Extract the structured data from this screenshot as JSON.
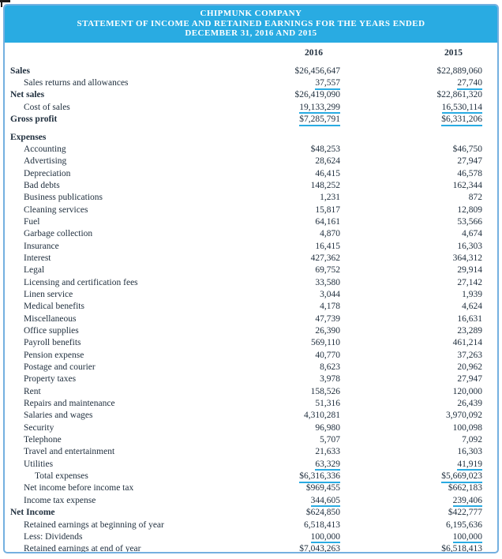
{
  "header": {
    "company": "CHIPMUNK COMPANY",
    "statement_title": "STATEMENT OF INCOME AND RETAINED EARNINGS FOR THE YEARS ENDED",
    "period": "DECEMBER 31, 2016 AND 2015"
  },
  "columns": [
    "2016",
    "2015"
  ],
  "colors": {
    "accent": "#29abe2",
    "frame_border": "#74b0e0",
    "text": "#21303f",
    "header_text": "#ffffff"
  },
  "rows": [
    {
      "label": "Sales",
      "a": [
        "$26,456,647",
        "$22,889,060"
      ],
      "bold": true,
      "indent": 0,
      "u": "none"
    },
    {
      "label": "Sales returns and allowances",
      "a": [
        "37,557",
        "27,740"
      ],
      "bold": false,
      "indent": 1,
      "u": "single"
    },
    {
      "label": "Net sales",
      "a": [
        "$26,419,090",
        "$22,861,320"
      ],
      "bold": true,
      "indent": 0,
      "u": "none"
    },
    {
      "label": "Cost of sales",
      "a": [
        "19,133,299",
        "16,530,114"
      ],
      "bold": false,
      "indent": 1,
      "u": "single"
    },
    {
      "label": "Gross profit",
      "a": [
        "$7,285,791",
        "$6,331,206"
      ],
      "bold": true,
      "indent": 0,
      "u": "single"
    },
    {
      "label": "Expenses",
      "a": [
        "",
        ""
      ],
      "bold": true,
      "indent": 0,
      "u": "none",
      "gap_before": true
    },
    {
      "label": "Accounting",
      "a": [
        "$48,253",
        "$46,750"
      ],
      "bold": false,
      "indent": 1,
      "u": "none"
    },
    {
      "label": "Advertising",
      "a": [
        "28,624",
        "27,947"
      ],
      "bold": false,
      "indent": 1,
      "u": "none"
    },
    {
      "label": "Depreciation",
      "a": [
        "46,415",
        "46,578"
      ],
      "bold": false,
      "indent": 1,
      "u": "none"
    },
    {
      "label": "Bad debts",
      "a": [
        "148,252",
        "162,344"
      ],
      "bold": false,
      "indent": 1,
      "u": "none"
    },
    {
      "label": "Business publications",
      "a": [
        "1,231",
        "872"
      ],
      "bold": false,
      "indent": 1,
      "u": "none"
    },
    {
      "label": "Cleaning services",
      "a": [
        "15,817",
        "12,809"
      ],
      "bold": false,
      "indent": 1,
      "u": "none"
    },
    {
      "label": "Fuel",
      "a": [
        "64,161",
        "53,566"
      ],
      "bold": false,
      "indent": 1,
      "u": "none"
    },
    {
      "label": "Garbage collection",
      "a": [
        "4,870",
        "4,674"
      ],
      "bold": false,
      "indent": 1,
      "u": "none"
    },
    {
      "label": "Insurance",
      "a": [
        "16,415",
        "16,303"
      ],
      "bold": false,
      "indent": 1,
      "u": "none"
    },
    {
      "label": "Interest",
      "a": [
        "427,362",
        "364,312"
      ],
      "bold": false,
      "indent": 1,
      "u": "none"
    },
    {
      "label": "Legal",
      "a": [
        "69,752",
        "29,914"
      ],
      "bold": false,
      "indent": 1,
      "u": "none"
    },
    {
      "label": "Licensing and certification fees",
      "a": [
        "33,580",
        "27,142"
      ],
      "bold": false,
      "indent": 1,
      "u": "none"
    },
    {
      "label": "Linen service",
      "a": [
        "3,044",
        "1,939"
      ],
      "bold": false,
      "indent": 1,
      "u": "none"
    },
    {
      "label": "Medical benefits",
      "a": [
        "4,178",
        "4,624"
      ],
      "bold": false,
      "indent": 1,
      "u": "none"
    },
    {
      "label": "Miscellaneous",
      "a": [
        "47,739",
        "16,631"
      ],
      "bold": false,
      "indent": 1,
      "u": "none"
    },
    {
      "label": "Office supplies",
      "a": [
        "26,390",
        "23,289"
      ],
      "bold": false,
      "indent": 1,
      "u": "none"
    },
    {
      "label": "Payroll benefits",
      "a": [
        "569,110",
        "461,214"
      ],
      "bold": false,
      "indent": 1,
      "u": "none"
    },
    {
      "label": "Pension expense",
      "a": [
        "40,770",
        "37,263"
      ],
      "bold": false,
      "indent": 1,
      "u": "none"
    },
    {
      "label": "Postage and courier",
      "a": [
        "8,623",
        "20,962"
      ],
      "bold": false,
      "indent": 1,
      "u": "none"
    },
    {
      "label": "Property taxes",
      "a": [
        "3,978",
        "27,947"
      ],
      "bold": false,
      "indent": 1,
      "u": "none"
    },
    {
      "label": "Rent",
      "a": [
        "158,526",
        "120,000"
      ],
      "bold": false,
      "indent": 1,
      "u": "none"
    },
    {
      "label": "Repairs and maintenance",
      "a": [
        "51,316",
        "26,439"
      ],
      "bold": false,
      "indent": 1,
      "u": "none"
    },
    {
      "label": "Salaries and wages",
      "a": [
        "4,310,281",
        "3,970,092"
      ],
      "bold": false,
      "indent": 1,
      "u": "none"
    },
    {
      "label": "Security",
      "a": [
        "96,980",
        "100,098"
      ],
      "bold": false,
      "indent": 1,
      "u": "none"
    },
    {
      "label": "Telephone",
      "a": [
        "5,707",
        "7,092"
      ],
      "bold": false,
      "indent": 1,
      "u": "none"
    },
    {
      "label": "Travel and entertainment",
      "a": [
        "21,633",
        "16,303"
      ],
      "bold": false,
      "indent": 1,
      "u": "none"
    },
    {
      "label": "Utilities",
      "a": [
        "63,329",
        "41,919"
      ],
      "bold": false,
      "indent": 1,
      "u": "single"
    },
    {
      "label": "Total expenses",
      "a": [
        "$6,316,336",
        "$5,669,023"
      ],
      "bold": false,
      "indent": 2,
      "u": "single"
    },
    {
      "label": "Net income before income tax",
      "a": [
        "$969,455",
        "$662,183"
      ],
      "bold": false,
      "indent": 1,
      "u": "none"
    },
    {
      "label": "Income tax expense",
      "a": [
        "344,605",
        "239,406"
      ],
      "bold": false,
      "indent": 1,
      "u": "single"
    },
    {
      "label": "Net Income",
      "a": [
        "$624,850",
        "$422,777"
      ],
      "bold": true,
      "indent": 0,
      "u": "none"
    },
    {
      "label": "Retained earnings at beginning of year",
      "a": [
        "6,518,413",
        "6,195,636"
      ],
      "bold": false,
      "indent": 1,
      "u": "none"
    },
    {
      "label": "Less: Dividends",
      "a": [
        "100,000",
        "100,000"
      ],
      "bold": false,
      "indent": 1,
      "u": "single"
    },
    {
      "label": "Retained earnings at end of year",
      "a": [
        "$7,043,263",
        "$6,518,413"
      ],
      "bold": false,
      "indent": 1,
      "u": "double"
    }
  ]
}
